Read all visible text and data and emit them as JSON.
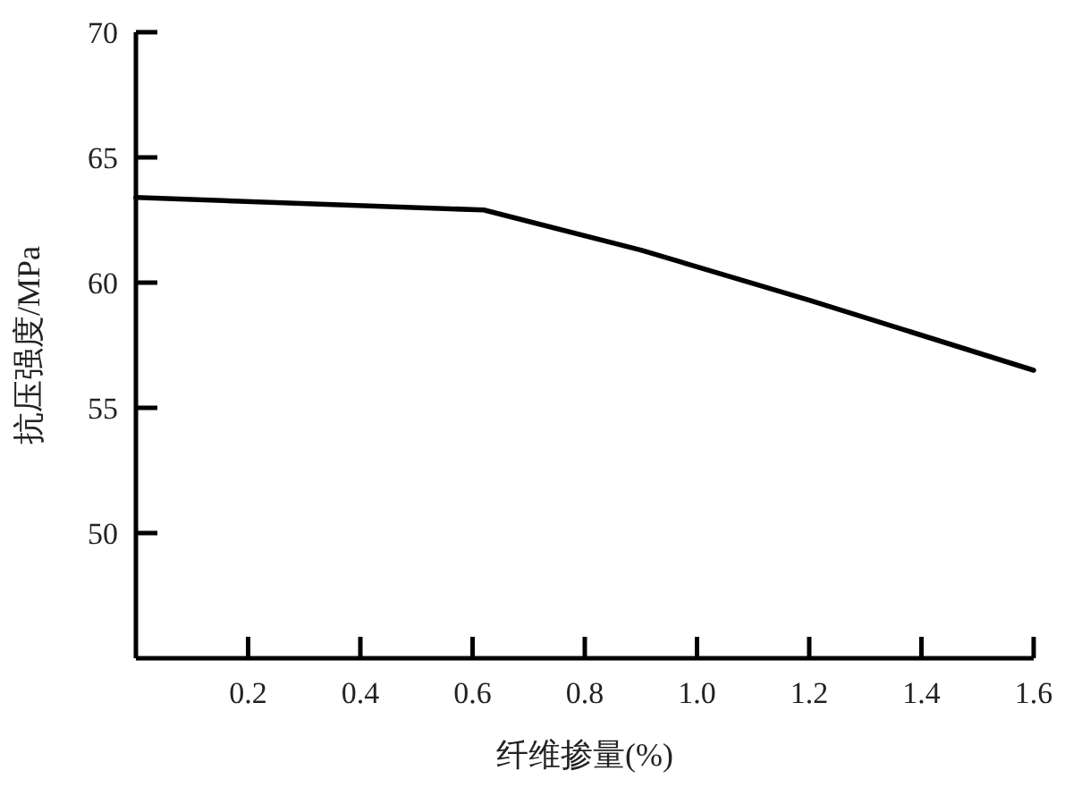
{
  "chart_data": {
    "type": "line",
    "xlabel": "纤维掺量(%)",
    "ylabel": "抗压强度/MPa",
    "x": [
      0,
      0.62,
      0.9,
      1.2,
      1.6
    ],
    "series": [
      {
        "color": "#000000",
        "values": [
          63.4,
          62.9,
          61.3,
          59.3,
          56.5
        ]
      }
    ],
    "xlim": [
      0,
      1.6
    ],
    "ylim": [
      45,
      70
    ],
    "xticks": [
      0.2,
      0.4,
      0.6,
      0.8,
      {
        "value": 1,
        "label": "1.0"
      },
      1.2,
      1.4,
      1.6
    ],
    "yticks": [
      50,
      55,
      60,
      65,
      70
    ]
  }
}
